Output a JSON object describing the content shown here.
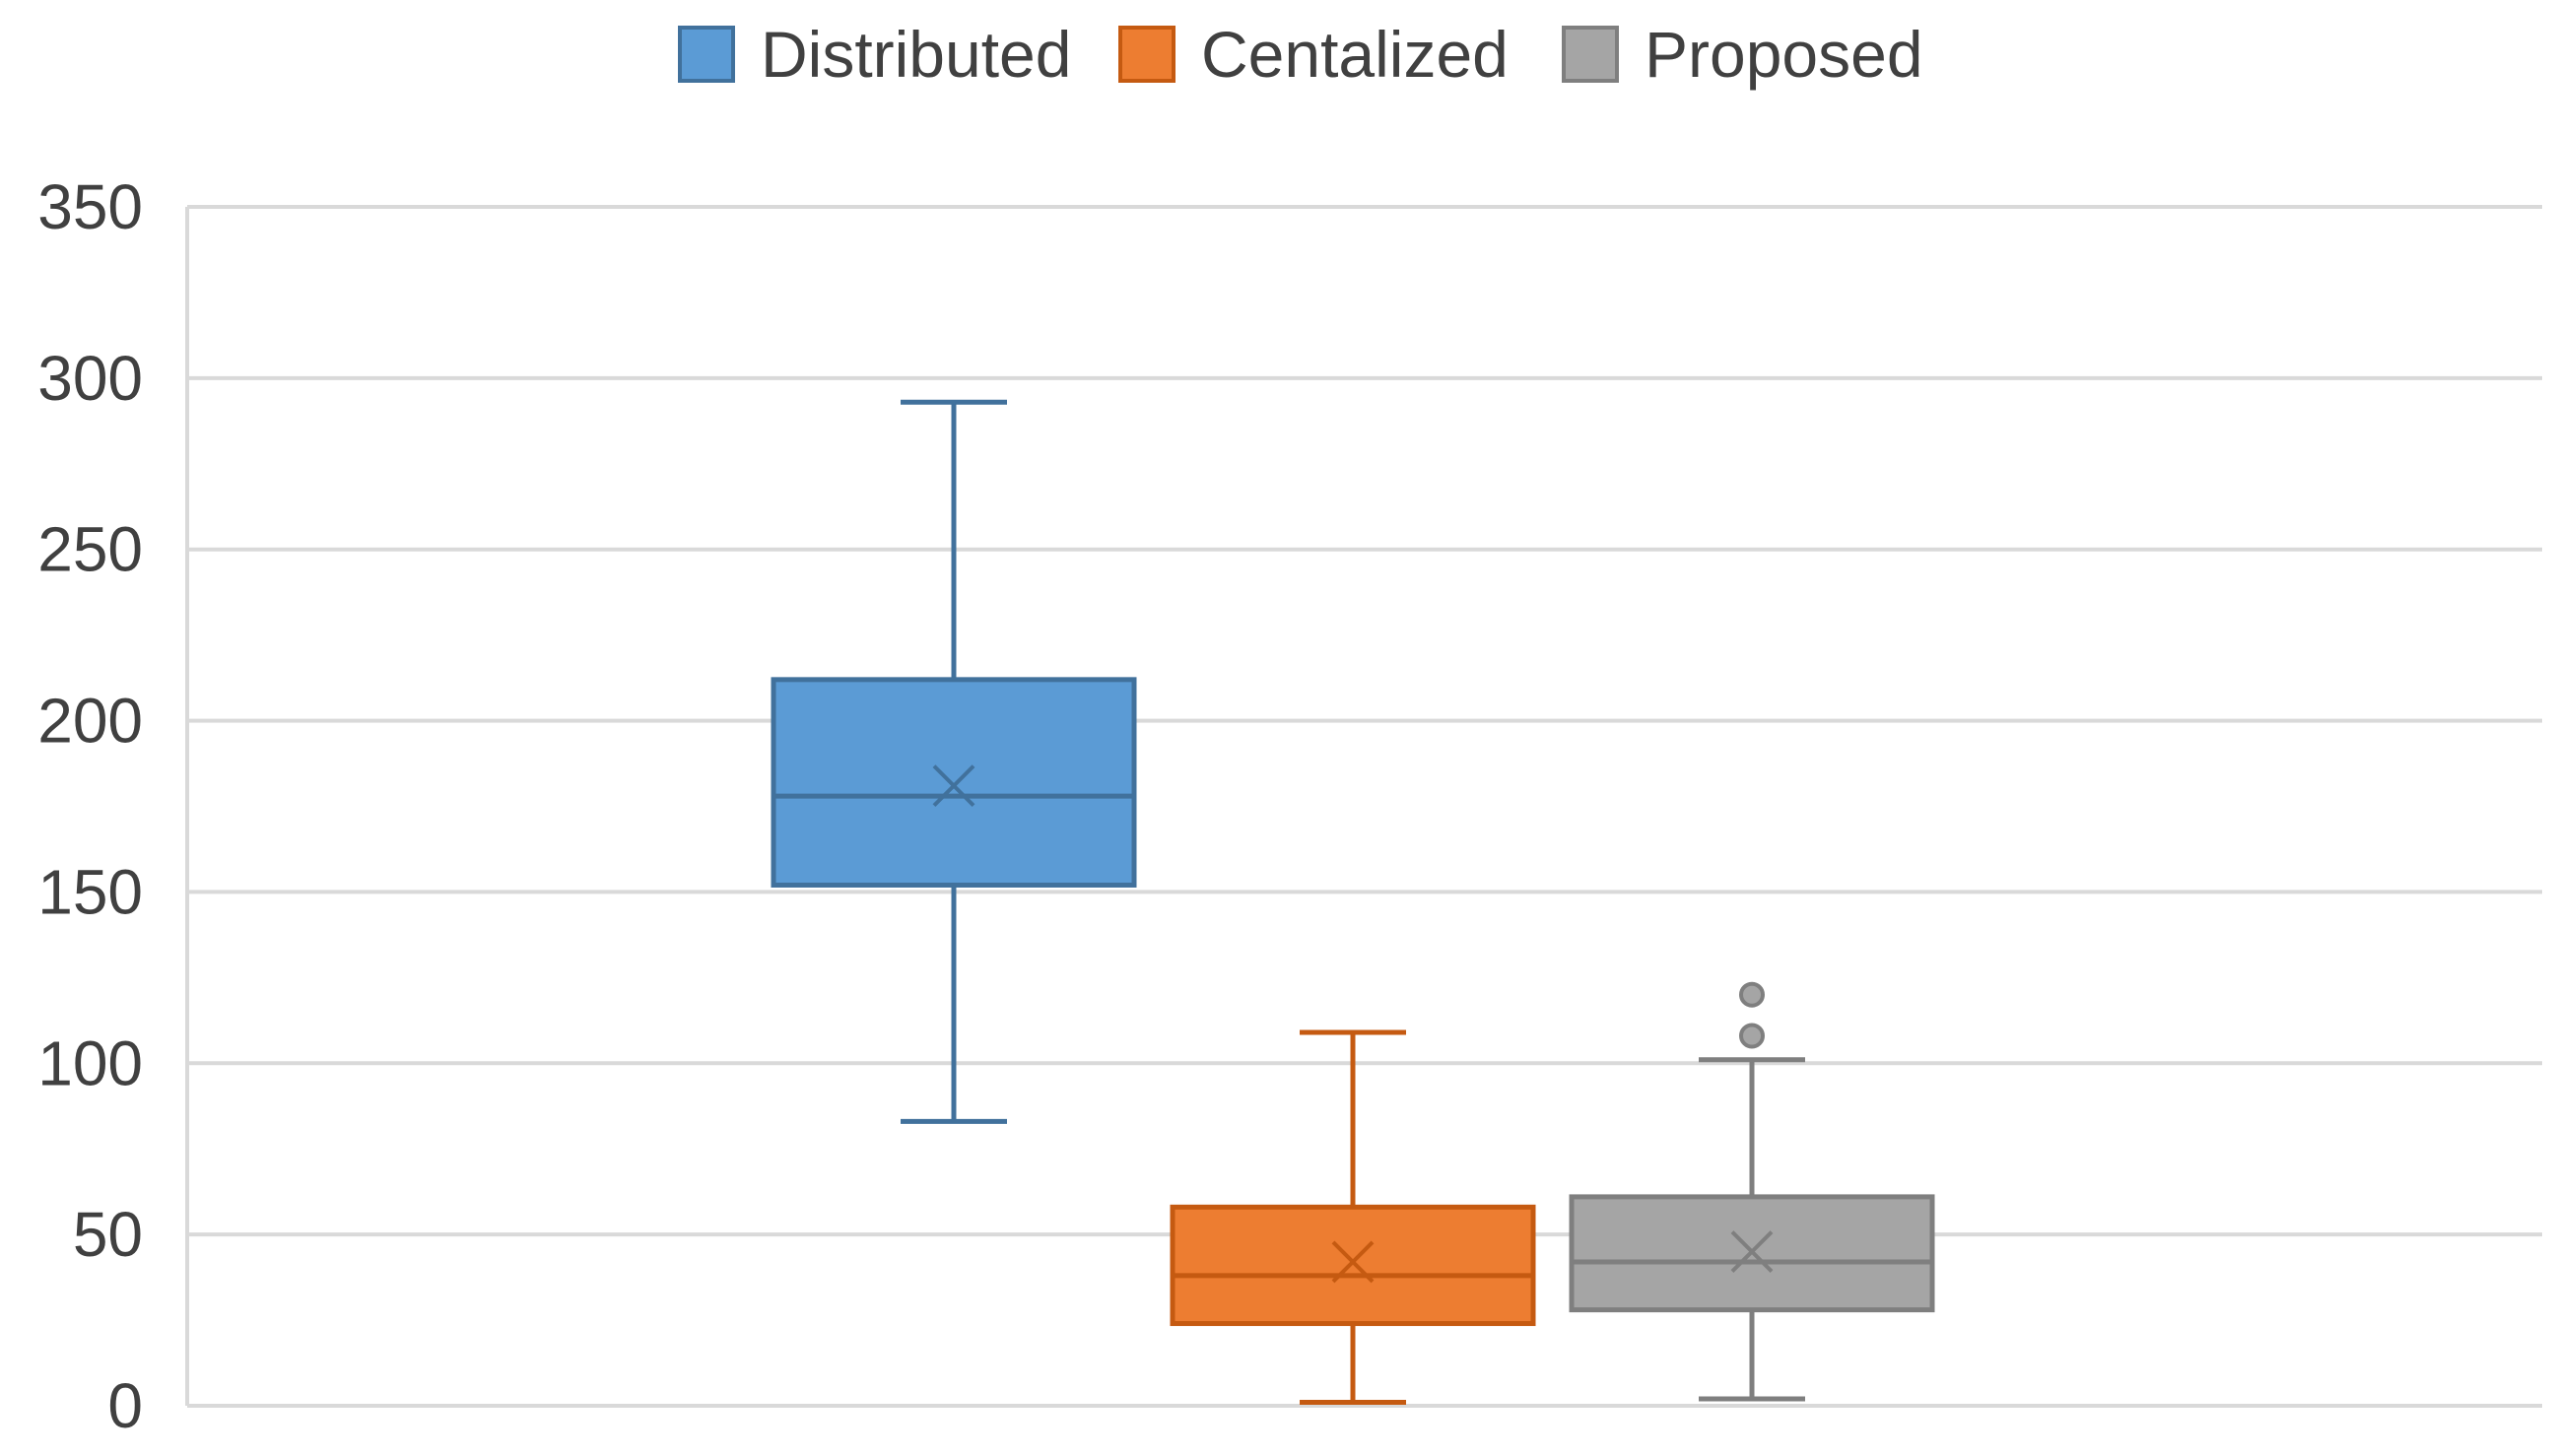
{
  "chart_data": {
    "type": "boxplot",
    "title": "",
    "xlabel": "",
    "ylabel": "",
    "ylim": [
      0,
      350
    ],
    "yticks": [
      0,
      50,
      100,
      150,
      200,
      250,
      300,
      350
    ],
    "grid": true,
    "legend_position": "top-center",
    "series": [
      {
        "name": "Distributed",
        "color": "#5B9BD5",
        "edge_color": "#41719C",
        "whisker_low": 83,
        "q1": 152,
        "median": 178,
        "q3": 212,
        "whisker_high": 293,
        "mean": 181,
        "outliers": []
      },
      {
        "name": "Centalized",
        "color": "#ED7D31",
        "edge_color": "#C55A11",
        "whisker_low": 1,
        "q1": 24,
        "median": 38,
        "q3": 58,
        "whisker_high": 109,
        "mean": 42,
        "outliers": []
      },
      {
        "name": "Proposed",
        "color": "#A5A5A5",
        "edge_color": "#7F7F7F",
        "whisker_low": 2,
        "q1": 28,
        "median": 42,
        "q3": 61,
        "whisker_high": 101,
        "mean": 45,
        "outliers": [
          108,
          120
        ]
      }
    ]
  }
}
